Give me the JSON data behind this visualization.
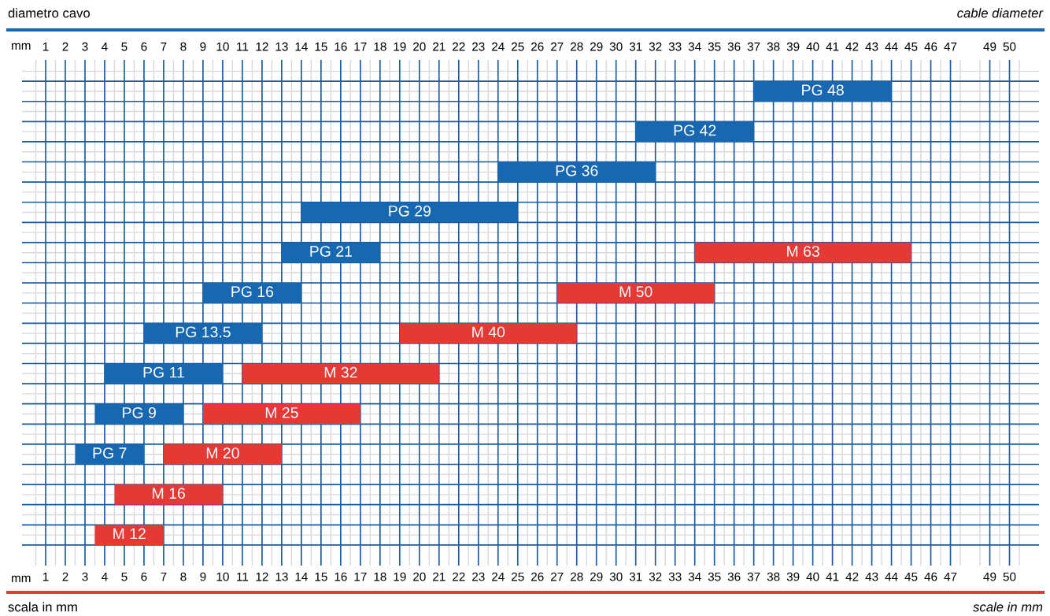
{
  "chart_data": {
    "type": "bar",
    "orientation": "horizontal",
    "title": "diametro cavo",
    "subtitle": "cable diameter",
    "xlabel": "mm",
    "x2label": "mm",
    "annotations": [
      "scala in mm",
      "scale in mm"
    ],
    "categories": [
      null,
      null,
      null,
      null,
      null,
      null,
      null,
      null,
      null,
      null,
      null,
      null
    ],
    "series": [
      {
        "color": "#1767b1",
        "base": [
          37,
          31,
          24,
          14,
          13,
          9,
          6,
          4,
          3.5,
          2.5,
          null,
          null
        ],
        "values": [
          7,
          6,
          8,
          11,
          5,
          5,
          6,
          6,
          4.5,
          3.5,
          null,
          null
        ],
        "value_labels": [
          "PG 48",
          "PG 42",
          "PG 36",
          "PG 29",
          "PG 21",
          "PG 16",
          "PG 13.5",
          "PG 11",
          "PG 9",
          "PG 7",
          null,
          null
        ]
      },
      {
        "color": "#e53935",
        "base": [
          null,
          null,
          null,
          null,
          34,
          27,
          19,
          11,
          9,
          7,
          4.5,
          3.5
        ],
        "values": [
          null,
          null,
          null,
          null,
          11,
          8,
          9,
          10,
          8,
          6,
          5.5,
          3.5
        ],
        "value_labels": [
          null,
          null,
          null,
          null,
          "M 63",
          "M 50",
          "M 40",
          "M 32",
          "M 25",
          "M 20",
          "M 16",
          "M 12"
        ]
      }
    ],
    "xlim": [
      -0.2,
      51.5
    ],
    "xticks": [
      1,
      2,
      3,
      4,
      5,
      6,
      7,
      8,
      9,
      10,
      11,
      12,
      13,
      14,
      15,
      16,
      17,
      18,
      19,
      20,
      21,
      22,
      23,
      24,
      25,
      26,
      27,
      28,
      29,
      30,
      31,
      32,
      33,
      34,
      35,
      36,
      37,
      38,
      39,
      40,
      41,
      42,
      43,
      44,
      45,
      46,
      47,
      49,
      50
    ],
    "x2lim": [
      -0.2,
      51.5
    ],
    "x2ticks": [
      1,
      2,
      3,
      4,
      5,
      6,
      7,
      8,
      9,
      10,
      11,
      12,
      13,
      14,
      15,
      16,
      17,
      18,
      19,
      20,
      21,
      22,
      23,
      24,
      25,
      26,
      27,
      28,
      29,
      30,
      31,
      32,
      33,
      34,
      35,
      36,
      37,
      38,
      39,
      40,
      41,
      42,
      43,
      44,
      45,
      46,
      47,
      49,
      50
    ],
    "grid": true,
    "legend": false
  }
}
